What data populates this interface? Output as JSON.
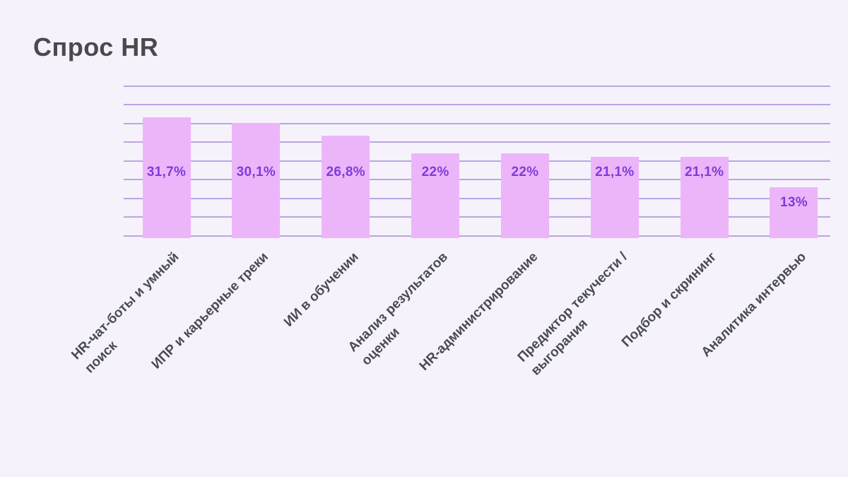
{
  "page": {
    "background": "#f5f2fb"
  },
  "title": "Спрос HR",
  "chart_data": {
    "type": "bar",
    "title": "Спрос HR",
    "categories": [
      [
        "HR-чат-боты и умный",
        "поиск"
      ],
      [
        "ИПР и карьерные треки"
      ],
      [
        "ИИ в обучении"
      ],
      [
        "Анализ результатов",
        "оценки"
      ],
      [
        "HR-администрирование"
      ],
      [
        "Предиктор текучести /",
        "выгорания"
      ],
      [
        "Подбор и скрининг"
      ],
      [
        "Аналитика интервью"
      ]
    ],
    "values": [
      31.7,
      30.1,
      26.8,
      22,
      22,
      21.1,
      21.1,
      13
    ],
    "value_labels": [
      "31,7%",
      "30,1%",
      "26,8%",
      "22%",
      "22%",
      "21,1%",
      "21,1%",
      "13%"
    ],
    "xlabel": "",
    "ylabel": "",
    "ylim": [
      0,
      40
    ],
    "grid": "on",
    "grid_step": 5,
    "legend": "none",
    "colors": {
      "background": "#f5f2fb",
      "bar_fill": "#ecb5fa",
      "gridline": "#bda4e1",
      "value_label": "#7d3dd8",
      "category_label": "#4b4a50",
      "title": "#4a494d"
    }
  }
}
